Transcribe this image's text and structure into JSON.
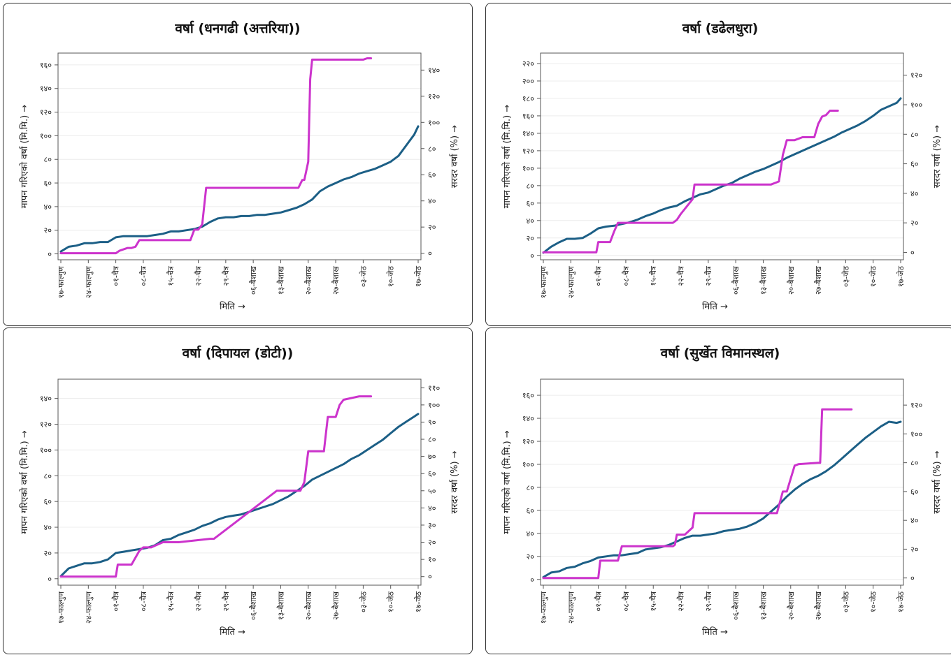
{
  "colors": {
    "measured": "#1c5f86",
    "normal": "#cc33cc",
    "grid": "#ececec",
    "axis": "#555555"
  },
  "panels": [
    {
      "title": "वर्षा (धनगढी (अत्तरिया))",
      "xlabel": "मिति →",
      "ylabel_left": "मापन गरिएको वर्षा (मि.मि.) →",
      "ylabel_right": "सरदर वर्षा (%) →",
      "yticks_left": [
        "०",
        "२०",
        "४०",
        "६०",
        "८०",
        "१००",
        "१२०",
        "१४०",
        "१६०"
      ],
      "yticks_right": [
        "०",
        "२०",
        "४०",
        "६०",
        "८०",
        "१००",
        "१२०",
        "१४०"
      ]
    },
    {
      "title": "वर्षा (डढेलधुरा)",
      "xlabel": "मिति →",
      "ylabel_left": "मापन गरिएको वर्षा (मि.मि.) →",
      "ylabel_right": "सरदर वर्षा (%) →",
      "yticks_left": [
        "०",
        "२०",
        "४०",
        "६०",
        "८०",
        "१००",
        "१२०",
        "१४०",
        "१६०",
        "१८०",
        "२००",
        "२२०"
      ],
      "yticks_right": [
        "०",
        "२०",
        "४०",
        "६०",
        "८०",
        "१००",
        "१२०"
      ]
    },
    {
      "title": "वर्षा (दिपायल (डोटी))",
      "xlabel": "मिति →",
      "ylabel_left": "मापन गरिएको वर्षा (मि.मि.) →",
      "ylabel_right": "सरदर वर्षा (%) →",
      "yticks_left": [
        "०",
        "२०",
        "४०",
        "६०",
        "८०",
        "१००",
        "१२०",
        "१४०"
      ],
      "yticks_right": [
        "०",
        "१०",
        "२०",
        "३०",
        "४०",
        "५०",
        "६०",
        "७०",
        "८०",
        "९०",
        "१००",
        "११०"
      ]
    },
    {
      "title": "वर्षा (सुर्खेत विमानस्थल)",
      "xlabel": "मिति →",
      "ylabel_left": "मापन गरिएको वर्षा (मि.मि.) →",
      "ylabel_right": "सरदर वर्षा (%) →",
      "yticks_left": [
        "०",
        "२०",
        "४०",
        "६०",
        "८०",
        "१००",
        "१२०",
        "१४०",
        "१६०"
      ],
      "yticks_right": [
        "०",
        "२०",
        "४०",
        "६०",
        "८०",
        "१००",
        "१२०"
      ]
    }
  ],
  "chart_data": [
    {
      "type": "line",
      "title": "वर्षा (धनगढी (अत्तरिया))",
      "xlabel": "मिति →",
      "ylabel": "मापन गरिएको वर्षा (मि.मि.) →",
      "ylabel_right": "सरदर वर्षा (%) →",
      "x_ticks": [
        "१७-फाल्गुण",
        "२४-फाल्गुण",
        "०१-चैत्र",
        "०८-चैत्र",
        "१५-चैत्र",
        "२२-चैत्र",
        "२९-चैत्र",
        "०६-बैशाख",
        "१३-बैशाख",
        "२०-बैशाख",
        "२७-बैशाख",
        "०३-जेठ",
        "१०-जेठ",
        "१७-जेठ"
      ],
      "x_range": [
        0,
        91
      ],
      "ylim": [
        -5,
        170
      ],
      "ylim_right": [
        -5,
        153
      ],
      "grid": true,
      "series": [
        {
          "axis": "left",
          "color": "#1c5f86",
          "x": [
            0,
            2,
            4,
            6,
            8,
            10,
            12,
            14,
            16,
            18,
            20,
            22,
            24,
            26,
            28,
            30,
            32,
            34,
            36,
            38,
            40,
            42,
            44,
            46,
            48,
            50,
            52,
            54,
            56,
            58,
            60,
            62,
            64,
            66,
            68,
            70,
            72,
            74,
            76,
            78,
            80,
            82,
            84,
            86,
            88,
            90,
            91
          ],
          "y": [
            2,
            6,
            7,
            9,
            9,
            10,
            10,
            14,
            15,
            15,
            15,
            15,
            16,
            17,
            19,
            19,
            20,
            21,
            23,
            27,
            30,
            31,
            31,
            32,
            32,
            33,
            33,
            34,
            35,
            37,
            39,
            42,
            46,
            53,
            57,
            60,
            63,
            65,
            68,
            70,
            72,
            75,
            78,
            83,
            92,
            101,
            108
          ]
        },
        {
          "axis": "right",
          "color": "#cc33cc",
          "x": [
            0,
            14,
            15,
            17,
            18,
            19,
            20,
            33,
            34,
            35,
            36,
            37,
            38,
            39,
            60,
            60.5,
            61.5,
            62,
            63,
            63.5,
            64,
            77,
            78,
            79,
            79
          ],
          "y": [
            0,
            0,
            2,
            4,
            4,
            5,
            10,
            10,
            18,
            18,
            22,
            50,
            50,
            50,
            50,
            50,
            56,
            56,
            70,
            133,
            148,
            148,
            149,
            149,
            149
          ]
        }
      ]
    },
    {
      "type": "line",
      "title": "वर्षा (डढेलधुरा)",
      "xlabel": "मिति →",
      "ylabel": "मापन गरिएको वर्षा (मि.मि.) →",
      "ylabel_right": "सरदर वर्षा (%) →",
      "x_ticks": [
        "१७-फाल्गुण",
        "२४-फाल्गुण",
        "०१-चैत्र",
        "०८-चैत्र",
        "१५-चैत्र",
        "२२-चैत्र",
        "२९-चैत्र",
        "०६-बैशाख",
        "१३-बैशाख",
        "२०-बैशाख",
        "२७-बैशाख",
        "०३-जेठ",
        "१०-जेठ",
        "१७-जेठ"
      ],
      "x_range": [
        0,
        91
      ],
      "ylim": [
        -5,
        232
      ],
      "ylim_right": [
        -5,
        135
      ],
      "grid": true,
      "series": [
        {
          "axis": "left",
          "color": "#1c5f86",
          "x": [
            0,
            2,
            4,
            6,
            8,
            10,
            12,
            14,
            16,
            18,
            20,
            22,
            24,
            26,
            28,
            30,
            32,
            34,
            36,
            38,
            40,
            42,
            44,
            46,
            48,
            50,
            52,
            54,
            56,
            58,
            60,
            62,
            64,
            66,
            68,
            70,
            72,
            74,
            76,
            78,
            80,
            82,
            84,
            86,
            88,
            90,
            91
          ],
          "y": [
            3,
            10,
            15,
            19,
            19,
            20,
            25,
            31,
            33,
            34,
            36,
            38,
            41,
            45,
            48,
            52,
            55,
            57,
            62,
            66,
            70,
            72,
            76,
            80,
            83,
            88,
            92,
            96,
            99,
            103,
            107,
            112,
            116,
            120,
            124,
            128,
            132,
            136,
            141,
            145,
            149,
            154,
            160,
            167,
            171,
            175,
            180
          ]
        },
        {
          "axis": "right",
          "color": "#cc33cc",
          "x": [
            0,
            13.5,
            14,
            16,
            17,
            18,
            19,
            33,
            34,
            35,
            38,
            38.5,
            39,
            57,
            57.5,
            58,
            60,
            61,
            62,
            64,
            66,
            69,
            70,
            71,
            72,
            73,
            75
          ],
          "y": [
            0,
            0,
            7,
            7,
            7,
            14,
            20,
            20,
            22,
            26,
            36,
            46,
            46,
            46,
            46,
            46,
            48,
            66,
            76,
            76,
            78,
            78,
            87,
            92,
            93,
            96,
            96
          ]
        }
      ]
    },
    {
      "type": "line",
      "title": "वर्षा (दिपायल (डोटी))",
      "xlabel": "मिति →",
      "ylabel": "मापन गरिएको वर्षा (मि.मि.) →",
      "ylabel_right": "सरदर वर्षा (%) →",
      "x_ticks": [
        "१७-फाल्गुण",
        "२४-फाल्गुण",
        "०१-चैत्र",
        "०८-चैत्र",
        "१५-चैत्र",
        "२२-चैत्र",
        "२९-चैत्र",
        "०६-बैशाख",
        "१३-बैशाख",
        "२०-बैशाख",
        "२७-बैशाख",
        "०३-जेठ",
        "१०-जेठ",
        "१७-जेठ"
      ],
      "x_range": [
        0,
        91
      ],
      "ylim": [
        -5,
        155
      ],
      "ylim_right": [
        -5,
        115
      ],
      "grid": true,
      "series": [
        {
          "axis": "left",
          "color": "#1c5f86",
          "x": [
            0,
            2,
            4,
            6,
            8,
            10,
            12,
            14,
            16,
            18,
            20,
            22,
            24,
            26,
            28,
            30,
            32,
            34,
            36,
            38,
            40,
            42,
            44,
            46,
            48,
            50,
            52,
            54,
            56,
            58,
            60,
            62,
            64,
            66,
            68,
            70,
            72,
            74,
            76,
            78,
            80,
            82,
            84,
            86,
            88,
            90,
            91
          ],
          "y": [
            2,
            8,
            10,
            12,
            12,
            13,
            15,
            20,
            21,
            22,
            23,
            24,
            26,
            30,
            31,
            34,
            36,
            38,
            41,
            43,
            46,
            48,
            49,
            50,
            52,
            54,
            56,
            58,
            61,
            64,
            68,
            72,
            77,
            80,
            83,
            86,
            89,
            93,
            96,
            100,
            104,
            108,
            113,
            118,
            122,
            126,
            128
          ]
        },
        {
          "axis": "right",
          "color": "#cc33cc",
          "x": [
            0,
            14,
            14.5,
            17,
            18,
            20,
            21,
            23,
            26,
            27,
            29,
            30,
            38,
            39,
            55,
            58,
            60,
            61,
            62,
            63,
            65,
            67,
            68,
            69,
            70,
            71,
            72,
            74,
            76,
            79
          ],
          "y": [
            0,
            0,
            7,
            7,
            7,
            15,
            17,
            17,
            20,
            20,
            20,
            20,
            22,
            22,
            50,
            50,
            50,
            50,
            55,
            73,
            73,
            73,
            93,
            93,
            93,
            100,
            103,
            104,
            105,
            105
          ]
        }
      ]
    },
    {
      "type": "line",
      "title": "वर्षा (सुर्खेत विमानस्थल)",
      "xlabel": "मिति →",
      "ylabel": "मापन गरिएको वर्षा (मि.मि.) →",
      "ylabel_right": "सरदर वर्षा (%) →",
      "x_ticks": [
        "१७-फाल्गुण",
        "२४-फाल्गुण",
        "०१-चैत्र",
        "०८-चैत्र",
        "१५-चैत्र",
        "२२-चैत्र",
        "२९-चैत्र",
        "०६-बैशाख",
        "१३-बैशाख",
        "२०-बैशाख",
        "२७-बैशाख",
        "०३-जेठ",
        "१०-जेठ",
        "१७-जेठ"
      ],
      "x_range": [
        0,
        91
      ],
      "ylim": [
        -5,
        174
      ],
      "ylim_right": [
        -5,
        138
      ],
      "grid": true,
      "series": [
        {
          "axis": "left",
          "color": "#1c5f86",
          "x": [
            0,
            2,
            4,
            6,
            8,
            10,
            12,
            14,
            16,
            18,
            20,
            22,
            24,
            26,
            28,
            30,
            32,
            34,
            36,
            38,
            40,
            42,
            44,
            46,
            48,
            50,
            52,
            54,
            56,
            58,
            60,
            62,
            64,
            66,
            68,
            70,
            72,
            74,
            76,
            78,
            80,
            82,
            84,
            86,
            88,
            90,
            91
          ],
          "y": [
            2,
            6,
            7,
            10,
            11,
            14,
            16,
            19,
            20,
            21,
            21,
            22,
            23,
            26,
            27,
            28,
            30,
            33,
            36,
            38,
            38,
            39,
            40,
            42,
            43,
            44,
            46,
            49,
            53,
            59,
            65,
            72,
            78,
            83,
            87,
            90,
            94,
            99,
            105,
            111,
            117,
            123,
            128,
            133,
            137,
            136,
            137
          ]
        },
        {
          "axis": "right",
          "color": "#cc33cc",
          "x": [
            0,
            14,
            14.5,
            17,
            18,
            19,
            20,
            33,
            33.5,
            34,
            36,
            38,
            38.5,
            39,
            59,
            59.5,
            60,
            61,
            62,
            63,
            64,
            65,
            70,
            70.5,
            71,
            78.5
          ],
          "y": [
            0,
            0,
            12,
            12,
            12,
            12,
            22,
            22,
            23,
            30,
            30,
            35,
            45,
            45,
            45,
            45,
            50,
            60,
            60,
            69,
            78,
            79,
            80,
            80,
            117,
            117
          ]
        }
      ]
    }
  ]
}
